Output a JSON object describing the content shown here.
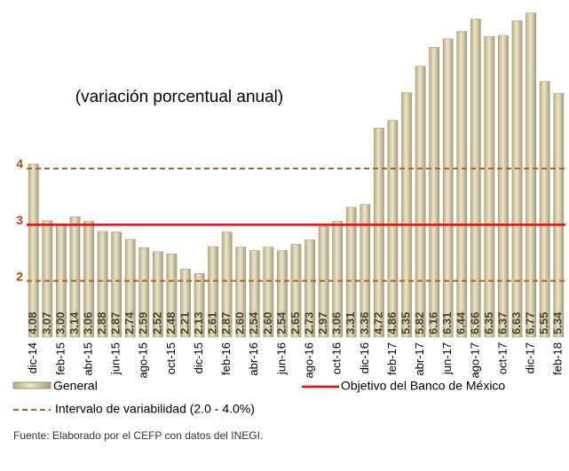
{
  "chart_data": {
    "type": "bar",
    "subtitle": "(variación porcentual anual)",
    "categories": [
      "dic-14",
      null,
      "feb-15",
      null,
      "abr-15",
      null,
      "jun-15",
      null,
      "ago-15",
      null,
      "oct-15",
      null,
      "dic-15",
      null,
      "feb-16",
      null,
      "abr-16",
      null,
      "jun-16",
      null,
      "ago-16",
      null,
      "oct-16",
      null,
      "dic-16",
      null,
      "feb-17",
      null,
      "abr-17",
      null,
      "jun-17",
      null,
      "ago-17",
      null,
      "oct-17",
      null,
      "dic-17",
      null,
      "feb-18"
    ],
    "series": [
      {
        "name": "General",
        "color": "#d6cda4",
        "values": [
          4.08,
          3.07,
          3.0,
          3.14,
          3.06,
          2.88,
          2.87,
          2.74,
          2.59,
          2.52,
          2.48,
          2.21,
          2.13,
          2.61,
          2.87,
          2.6,
          2.54,
          2.6,
          2.54,
          2.65,
          2.73,
          2.97,
          3.06,
          3.31,
          3.36,
          4.72,
          4.86,
          5.35,
          5.82,
          6.16,
          6.31,
          6.44,
          6.66,
          6.35,
          6.37,
          6.63,
          6.77,
          5.55,
          5.34
        ],
        "value_labels": [
          "4.08",
          "3.07",
          "3.00",
          "3.14",
          "3.06",
          "2.88",
          "2.87",
          "2.74",
          "2.59",
          "2.52",
          "2.48",
          "2.21",
          "2.13",
          "2.61",
          "2.87",
          "2.60",
          "2.54",
          "2.60",
          "2.54",
          "2.65",
          "2.73",
          "2.97",
          "3.06",
          "3.31",
          "3.36",
          "4.72",
          "4.86",
          "5.35",
          "5.82",
          "6.16",
          "6.31",
          "6.44",
          "6.66",
          "6.35",
          "6.37",
          "6.63",
          "6.77",
          "5.55",
          "5.34"
        ]
      }
    ],
    "reference_lines": [
      {
        "name": "Objetivo del Banco de México",
        "values": [
          3
        ],
        "color": "#ff0000",
        "style": "solid"
      },
      {
        "name": "Intervalo de variabilidad (2.0 - 4.0%)",
        "values": [
          2,
          4
        ],
        "color": "#b5651d",
        "style": "dashed"
      }
    ],
    "ylim": [
      1,
      7
    ],
    "yticks": [
      2,
      3,
      4
    ],
    "grid": false,
    "source": "Fuente: Elaborado por el CEFP con datos del INEGI."
  }
}
